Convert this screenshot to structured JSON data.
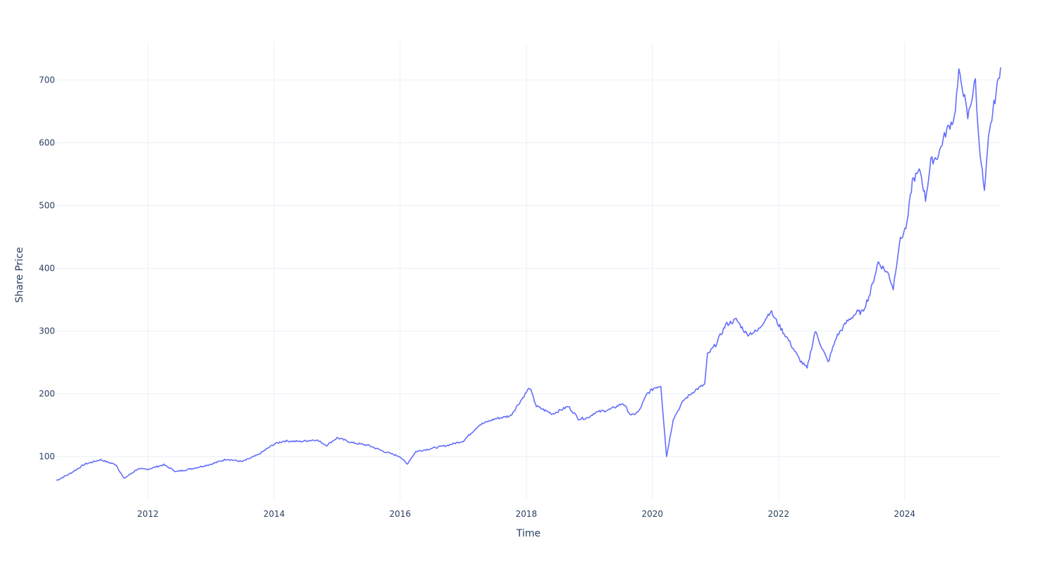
{
  "chart_data": {
    "type": "line",
    "xlabel": "Time",
    "ylabel": "Share Price",
    "x_ticks": [
      "2012",
      "2014",
      "2016",
      "2018",
      "2020",
      "2022",
      "2024"
    ],
    "y_ticks": [
      100,
      200,
      300,
      400,
      500,
      600,
      700
    ],
    "xlim": [
      "2010-07-20",
      "2025-07-10"
    ],
    "ylim": [
      30,
      760
    ],
    "grid": true,
    "line_color": "#636efa",
    "series": [
      {
        "x": [
          "2010-07-20",
          "2010-10-01",
          "2011-01-01",
          "2011-04-01",
          "2011-07-01",
          "2011-08-15",
          "2011-11-01",
          "2012-01-01",
          "2012-04-01",
          "2012-06-15",
          "2012-10-01",
          "2013-01-01",
          "2013-04-01",
          "2013-07-01",
          "2013-10-01",
          "2014-01-01",
          "2014-03-01",
          "2014-06-01",
          "2014-09-01",
          "2014-11-01",
          "2015-01-01",
          "2015-04-01",
          "2015-07-01",
          "2015-10-01",
          "2016-01-01",
          "2016-02-10",
          "2016-04-01",
          "2016-07-01",
          "2016-10-01",
          "2017-01-01",
          "2017-04-01",
          "2017-07-01",
          "2017-10-01",
          "2018-01-20",
          "2018-03-01",
          "2018-06-01",
          "2018-09-01",
          "2018-11-01",
          "2018-12-24",
          "2019-02-01",
          "2019-05-01",
          "2019-07-15",
          "2019-09-01",
          "2019-10-15",
          "2019-12-01",
          "2020-01-15",
          "2020-02-19",
          "2020-03-23",
          "2020-05-01",
          "2020-07-01",
          "2020-09-01",
          "2020-10-30",
          "2020-11-15",
          "2021-01-01",
          "2021-03-01",
          "2021-05-01",
          "2021-07-01",
          "2021-09-01",
          "2021-11-15",
          "2022-01-01",
          "2022-03-01",
          "2022-05-01",
          "2022-06-15",
          "2022-08-01",
          "2022-10-15",
          "2022-12-01",
          "2023-02-01",
          "2023-04-01",
          "2023-05-01",
          "2023-06-15",
          "2023-08-01",
          "2023-10-01",
          "2023-10-27",
          "2023-12-01",
          "2024-01-15",
          "2024-02-15",
          "2024-04-01",
          "2024-05-01",
          "2024-06-01",
          "2024-07-15",
          "2024-08-05",
          "2024-09-01",
          "2024-10-15",
          "2024-11-10",
          "2024-12-01",
          "2025-01-01",
          "2025-02-14",
          "2025-03-01",
          "2025-04-07",
          "2025-05-01",
          "2025-06-01",
          "2025-07-10"
        ],
        "y": [
          62,
          72,
          88,
          95,
          87,
          65,
          80,
          80,
          87,
          76,
          82,
          88,
          96,
          92,
          103,
          120,
          125,
          124,
          127,
          118,
          130,
          122,
          118,
          108,
          100,
          88,
          108,
          113,
          118,
          125,
          150,
          160,
          165,
          210,
          180,
          168,
          180,
          160,
          162,
          170,
          175,
          185,
          165,
          172,
          200,
          210,
          213,
          100,
          160,
          190,
          205,
          215,
          262,
          278,
          310,
          318,
          295,
          300,
          332,
          310,
          285,
          255,
          240,
          300,
          250,
          290,
          315,
          330,
          330,
          360,
          410,
          390,
          368,
          440,
          470,
          540,
          555,
          510,
          570,
          580,
          600,
          620,
          640,
          710,
          690,
          640,
          700,
          620,
          520,
          605,
          660,
          720
        ]
      }
    ]
  }
}
